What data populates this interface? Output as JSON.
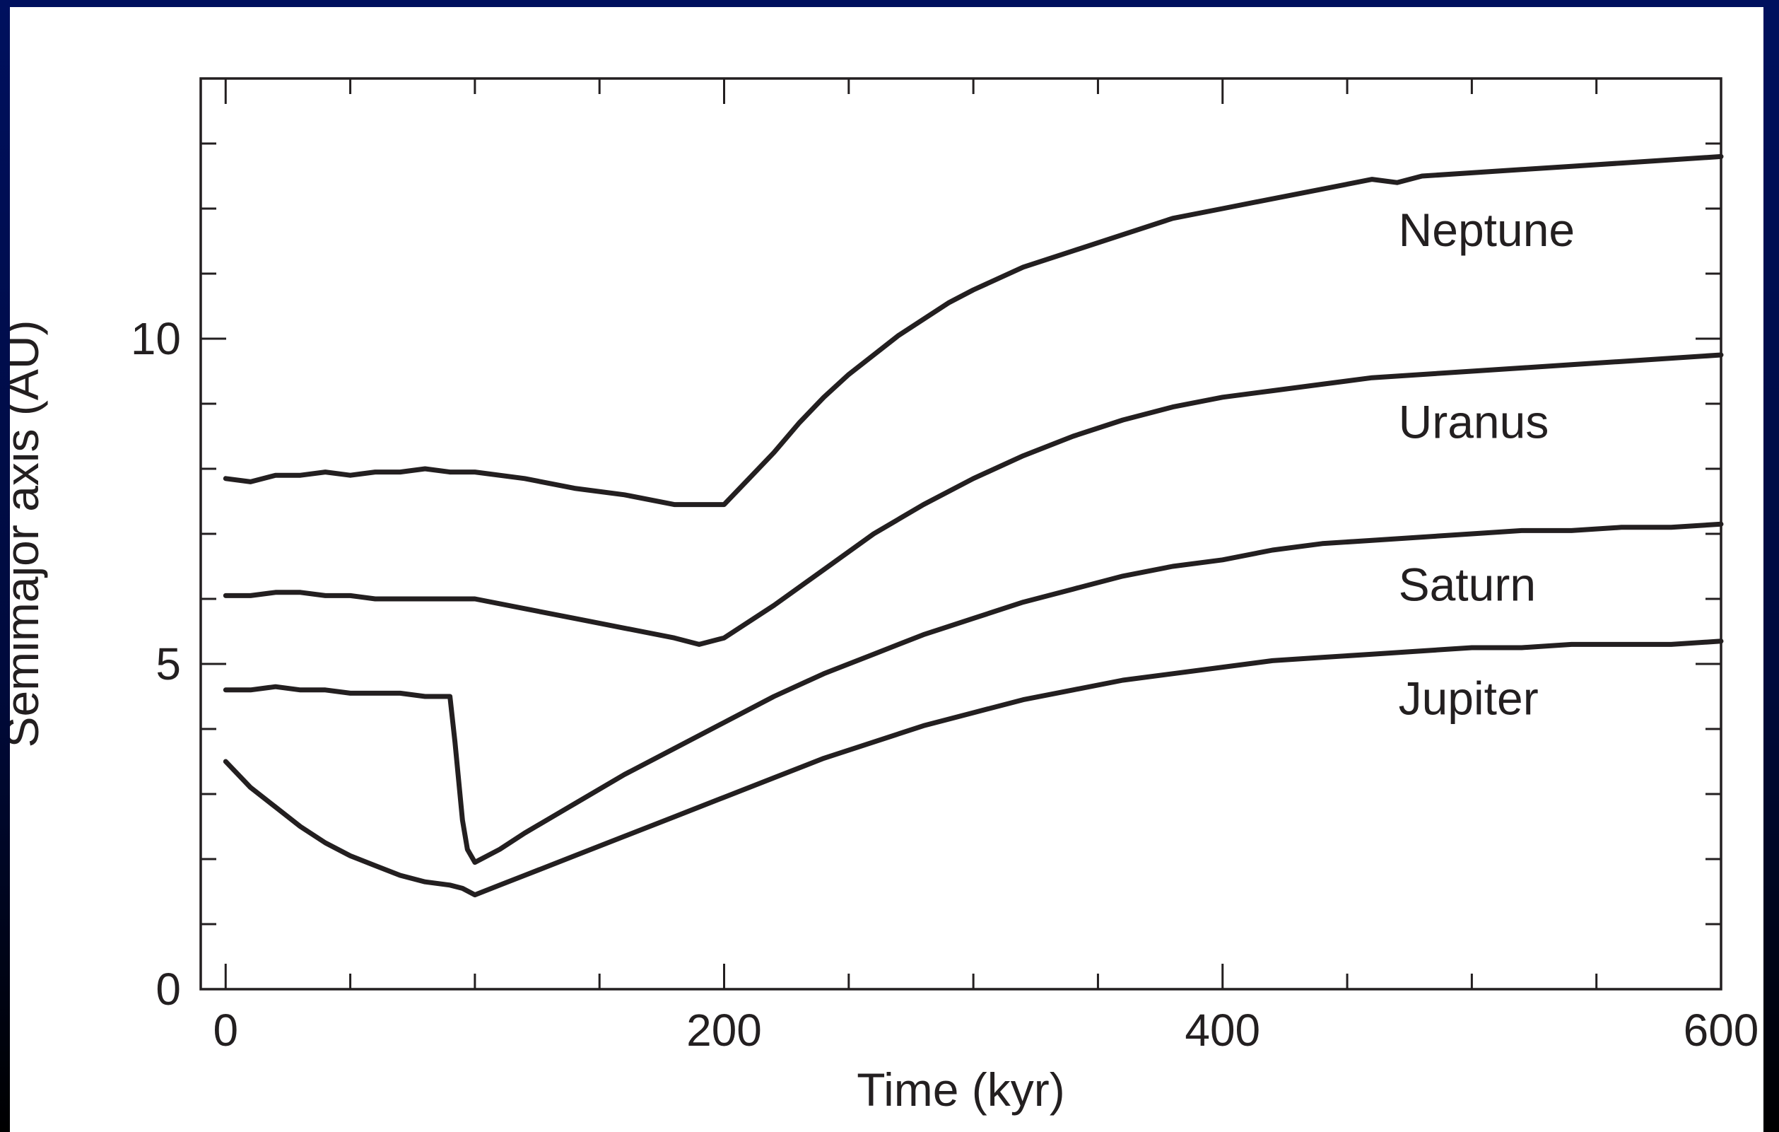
{
  "chart_data": {
    "type": "line",
    "title": "",
    "xlabel": "Time (kyr)",
    "ylabel": "Semimajor axis (AU)",
    "xlim": [
      -10,
      600
    ],
    "ylim": [
      0,
      14
    ],
    "x_ticks": [
      0,
      200,
      400,
      600
    ],
    "y_ticks": [
      0,
      5,
      10
    ],
    "grid": false,
    "line_color": "#231f20",
    "series": [
      {
        "name": "Neptune",
        "x": [
          0,
          10,
          20,
          30,
          40,
          50,
          60,
          70,
          80,
          90,
          100,
          120,
          140,
          160,
          180,
          200,
          210,
          220,
          230,
          240,
          250,
          260,
          270,
          280,
          290,
          300,
          320,
          340,
          360,
          380,
          400,
          420,
          440,
          460,
          470,
          480,
          500,
          520,
          540,
          560,
          580,
          600
        ],
        "y": [
          7.85,
          7.8,
          7.9,
          7.9,
          7.95,
          7.9,
          7.95,
          7.95,
          8.0,
          7.95,
          7.95,
          7.85,
          7.7,
          7.6,
          7.45,
          7.45,
          7.85,
          8.25,
          8.7,
          9.1,
          9.45,
          9.75,
          10.05,
          10.3,
          10.55,
          10.75,
          11.1,
          11.35,
          11.6,
          11.85,
          12.0,
          12.15,
          12.3,
          12.45,
          12.4,
          12.5,
          12.55,
          12.6,
          12.65,
          12.7,
          12.75,
          12.8
        ]
      },
      {
        "name": "Uranus",
        "x": [
          0,
          10,
          20,
          30,
          40,
          50,
          60,
          70,
          80,
          90,
          100,
          120,
          140,
          160,
          180,
          190,
          200,
          220,
          240,
          260,
          280,
          300,
          320,
          340,
          360,
          380,
          400,
          420,
          440,
          460,
          480,
          500,
          520,
          540,
          560,
          580,
          600
        ],
        "y": [
          6.05,
          6.05,
          6.1,
          6.1,
          6.05,
          6.05,
          6.0,
          6.0,
          6.0,
          6.0,
          6.0,
          5.85,
          5.7,
          5.55,
          5.4,
          5.3,
          5.4,
          5.9,
          6.45,
          7.0,
          7.45,
          7.85,
          8.2,
          8.5,
          8.75,
          8.95,
          9.1,
          9.2,
          9.3,
          9.4,
          9.45,
          9.5,
          9.55,
          9.6,
          9.65,
          9.7,
          9.75
        ]
      },
      {
        "name": "Saturn",
        "x": [
          0,
          10,
          20,
          30,
          40,
          50,
          60,
          70,
          80,
          90,
          92,
          95,
          97,
          100,
          110,
          120,
          140,
          160,
          180,
          200,
          220,
          240,
          260,
          280,
          300,
          320,
          340,
          360,
          380,
          400,
          420,
          440,
          460,
          480,
          500,
          520,
          540,
          560,
          580,
          600
        ],
        "y": [
          4.6,
          4.6,
          4.65,
          4.6,
          4.6,
          4.55,
          4.55,
          4.55,
          4.5,
          4.5,
          3.8,
          2.6,
          2.15,
          1.95,
          2.15,
          2.4,
          2.85,
          3.3,
          3.7,
          4.1,
          4.5,
          4.85,
          5.15,
          5.45,
          5.7,
          5.95,
          6.15,
          6.35,
          6.5,
          6.6,
          6.75,
          6.85,
          6.9,
          6.95,
          7.0,
          7.05,
          7.05,
          7.1,
          7.1,
          7.15
        ]
      },
      {
        "name": "Jupiter",
        "x": [
          0,
          10,
          20,
          30,
          40,
          50,
          60,
          70,
          80,
          90,
          95,
          100,
          110,
          120,
          140,
          160,
          180,
          200,
          220,
          240,
          260,
          280,
          300,
          320,
          340,
          360,
          380,
          400,
          420,
          440,
          460,
          480,
          500,
          520,
          540,
          560,
          580,
          600
        ],
        "y": [
          3.5,
          3.1,
          2.8,
          2.5,
          2.25,
          2.05,
          1.9,
          1.75,
          1.65,
          1.6,
          1.55,
          1.45,
          1.6,
          1.75,
          2.05,
          2.35,
          2.65,
          2.95,
          3.25,
          3.55,
          3.8,
          4.05,
          4.25,
          4.45,
          4.6,
          4.75,
          4.85,
          4.95,
          5.05,
          5.1,
          5.15,
          5.2,
          5.25,
          5.25,
          5.3,
          5.3,
          5.3,
          5.35
        ]
      }
    ]
  }
}
